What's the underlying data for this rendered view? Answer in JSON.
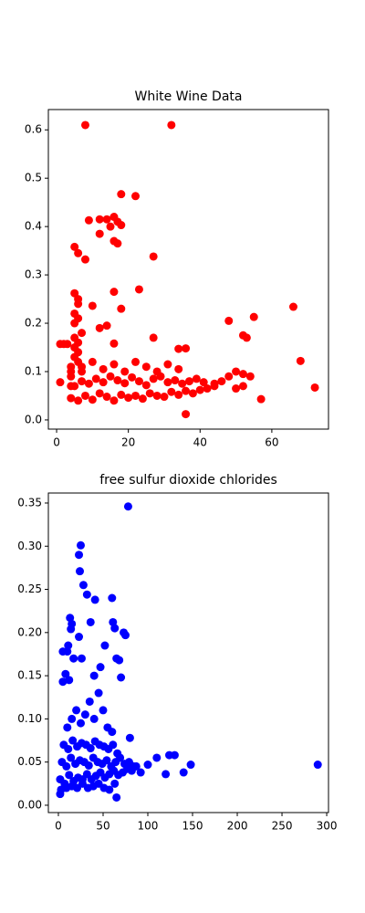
{
  "chart_data": [
    {
      "type": "scatter",
      "title": "White Wine Data",
      "color": "#ff0000",
      "x": [
        8,
        32,
        18,
        22,
        9,
        12,
        14,
        16,
        17,
        18,
        15,
        12,
        16,
        17,
        27,
        6,
        8,
        5,
        23,
        16,
        5,
        6,
        6,
        10,
        18,
        5,
        6,
        12,
        14,
        66,
        55,
        48,
        52,
        53,
        68,
        72,
        57,
        36,
        2,
        1,
        3,
        27,
        34,
        36,
        16,
        1,
        4,
        4,
        4,
        5,
        5,
        5,
        6,
        6,
        6,
        7,
        7,
        5,
        4,
        6,
        8,
        10,
        12,
        14,
        16,
        18,
        20,
        22,
        24,
        26,
        28,
        30,
        32,
        34,
        36,
        38,
        40,
        42,
        44,
        5,
        7,
        9,
        11,
        13,
        15,
        17,
        19,
        21,
        23,
        25,
        27,
        29,
        31,
        33,
        35,
        37,
        39,
        41,
        4,
        7,
        10,
        13,
        16,
        19,
        22,
        25,
        28,
        31,
        34,
        46,
        48,
        50,
        52,
        44,
        50,
        54,
        52
      ],
      "y": [
        0.61,
        0.61,
        0.467,
        0.463,
        0.413,
        0.415,
        0.415,
        0.42,
        0.41,
        0.403,
        0.4,
        0.385,
        0.37,
        0.365,
        0.338,
        0.345,
        0.332,
        0.358,
        0.27,
        0.265,
        0.262,
        0.25,
        0.24,
        0.236,
        0.23,
        0.22,
        0.21,
        0.19,
        0.195,
        0.234,
        0.213,
        0.205,
        0.175,
        0.17,
        0.122,
        0.067,
        0.043,
        0.012,
        0.157,
        0.157,
        0.157,
        0.17,
        0.147,
        0.148,
        0.158,
        0.078,
        0.07,
        0.09,
        0.11,
        0.13,
        0.15,
        0.17,
        0.12,
        0.14,
        0.16,
        0.1,
        0.18,
        0.2,
        0.045,
        0.04,
        0.05,
        0.042,
        0.055,
        0.048,
        0.04,
        0.052,
        0.046,
        0.05,
        0.044,
        0.055,
        0.05,
        0.048,
        0.058,
        0.052,
        0.06,
        0.055,
        0.062,
        0.065,
        0.07,
        0.07,
        0.08,
        0.075,
        0.085,
        0.078,
        0.09,
        0.082,
        0.076,
        0.088,
        0.08,
        0.072,
        0.085,
        0.09,
        0.078,
        0.082,
        0.075,
        0.08,
        0.085,
        0.078,
        0.1,
        0.11,
        0.12,
        0.105,
        0.115,
        0.1,
        0.12,
        0.11,
        0.1,
        0.115,
        0.105,
        0.08,
        0.09,
        0.1,
        0.07,
        0.075,
        0.065,
        0.09,
        0.095
      ],
      "xlim": [
        -2.3,
        75.8
      ],
      "ylim": [
        -0.019,
        0.642
      ],
      "xticks": [
        0,
        20,
        40,
        60
      ],
      "yticks": [
        {
          "value": 0,
          "label": "0.0"
        },
        0.1,
        0.2,
        0.3,
        0.4,
        0.5,
        0.6
      ]
    },
    {
      "type": "scatter",
      "title": "free sulfur dioxide chlorides",
      "color": "#0000ff",
      "x": [
        78,
        25,
        23,
        24,
        28,
        32,
        41,
        60,
        13,
        15,
        14,
        61,
        63,
        73,
        75,
        36,
        23,
        11,
        5,
        10,
        17,
        26,
        47,
        65,
        68,
        52,
        5,
        12,
        8,
        40,
        70,
        290,
        148,
        130,
        124,
        110,
        100,
        140,
        120,
        65,
        80,
        2,
        2,
        7,
        12,
        17,
        22,
        27,
        32,
        37,
        42,
        47,
        52,
        57,
        62,
        67,
        72,
        77,
        82,
        87,
        92,
        4,
        9,
        14,
        19,
        24,
        29,
        34,
        39,
        44,
        49,
        54,
        59,
        64,
        69,
        74,
        79,
        84,
        6,
        11,
        16,
        21,
        26,
        31,
        36,
        41,
        46,
        51,
        56,
        61,
        66,
        10,
        15,
        20,
        25,
        30,
        35,
        40,
        45,
        50,
        55,
        60,
        3,
        9,
        15,
        21,
        27,
        33,
        39,
        45,
        51,
        57,
        63
      ],
      "y": [
        0.346,
        0.301,
        0.29,
        0.271,
        0.255,
        0.244,
        0.238,
        0.24,
        0.217,
        0.21,
        0.204,
        0.212,
        0.205,
        0.2,
        0.197,
        0.212,
        0.195,
        0.185,
        0.178,
        0.178,
        0.17,
        0.17,
        0.16,
        0.17,
        0.168,
        0.185,
        0.143,
        0.145,
        0.152,
        0.15,
        0.148,
        0.047,
        0.047,
        0.058,
        0.058,
        0.055,
        0.047,
        0.038,
        0.036,
        0.009,
        0.078,
        0.013,
        0.03,
        0.025,
        0.035,
        0.028,
        0.032,
        0.03,
        0.036,
        0.03,
        0.034,
        0.038,
        0.032,
        0.036,
        0.04,
        0.035,
        0.038,
        0.042,
        0.04,
        0.045,
        0.038,
        0.05,
        0.045,
        0.055,
        0.048,
        0.052,
        0.05,
        0.046,
        0.055,
        0.05,
        0.048,
        0.052,
        0.045,
        0.05,
        0.055,
        0.048,
        0.05,
        0.045,
        0.07,
        0.065,
        0.075,
        0.068,
        0.072,
        0.07,
        0.066,
        0.074,
        0.07,
        0.068,
        0.065,
        0.07,
        0.06,
        0.09,
        0.1,
        0.11,
        0.095,
        0.105,
        0.12,
        0.1,
        0.13,
        0.11,
        0.09,
        0.085,
        0.018,
        0.02,
        0.022,
        0.02,
        0.025,
        0.02,
        0.022,
        0.025,
        0.02,
        0.018,
        0.025
      ],
      "xlim": [
        -11.2,
        302
      ],
      "ylim": [
        -0.0085,
        0.3616
      ],
      "xticks": [
        0,
        50,
        100,
        150,
        200,
        250,
        300
      ],
      "yticks": [
        {
          "value": 0,
          "label": "0.00"
        },
        0.05,
        {
          "value": 0.1,
          "label": "0.10"
        },
        0.15,
        {
          "value": 0.2,
          "label": "0.20"
        },
        0.25,
        {
          "value": 0.3,
          "label": "0.30"
        },
        0.35
      ]
    }
  ]
}
